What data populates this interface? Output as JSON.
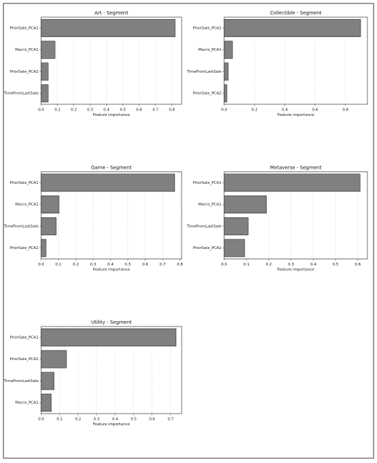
{
  "chart_data": [
    {
      "type": "barh",
      "title": "Art - Segment",
      "categories": [
        "PriorSale_PCA1",
        "Macro_PCA1",
        "PriorSale_PCA2",
        "TimeFromLastSale"
      ],
      "values": [
        0.82,
        0.085,
        0.043,
        0.043
      ],
      "color": "#808080",
      "xlabel": "Feature importance",
      "xlim": [
        0,
        0.86
      ],
      "xticks": [
        {
          "value": 0,
          "label": "0.0"
        },
        0.1,
        0.2,
        0.3,
        0.4,
        0.5,
        0.6,
        0.7,
        0.8
      ],
      "grid": true
    },
    {
      "type": "barh",
      "title": "Collectible - Segment",
      "categories": [
        "PriorSale_PCA1",
        "Macro_PCA1",
        "TimeFromLastSale",
        "PriorSale_PCA2"
      ],
      "values": [
        0.9,
        0.055,
        0.027,
        0.018
      ],
      "color": "#808080",
      "xlabel": "Feature importance",
      "xlim": [
        0,
        0.945
      ],
      "xticks": [
        {
          "value": 0,
          "label": "0.0"
        },
        0.2,
        0.4,
        0.6,
        0.8
      ],
      "grid": true
    },
    {
      "type": "barh",
      "title": "Game - Segment",
      "categories": [
        "PriorSale_PCA1",
        "Macro_PCA1",
        "TimeFromLastSale",
        "PriorSale_PCA2"
      ],
      "values": [
        0.77,
        0.103,
        0.087,
        0.028
      ],
      "color": "#808080",
      "xlabel": "Feature importance",
      "xlim": [
        0,
        0.81
      ],
      "xticks": [
        {
          "value": 0,
          "label": "0.0"
        },
        0.1,
        0.2,
        0.3,
        0.4,
        0.5,
        0.6,
        0.7,
        0.8
      ],
      "grid": true
    },
    {
      "type": "barh",
      "title": "Metaverse - Segment",
      "categories": [
        "PriorSale_PCA1",
        "Macro_PCA1",
        "TimeFromLastSale",
        "PriorSale_PCA2"
      ],
      "values": [
        0.61,
        0.19,
        0.108,
        0.092
      ],
      "color": "#808080",
      "xlabel": "Feature importance",
      "xlim": [
        0,
        0.643
      ],
      "xticks": [
        {
          "value": 0,
          "label": "0.0"
        },
        0.1,
        0.2,
        0.3,
        0.4,
        0.5,
        0.6
      ],
      "grid": true
    },
    {
      "type": "barh",
      "title": "Utility - Segment",
      "categories": [
        "PriorSale_PCA1",
        "PriorSale_PCA2",
        "TimeFromLastSale",
        "Macro_PCA1"
      ],
      "values": [
        0.73,
        0.137,
        0.07,
        0.055
      ],
      "color": "#808080",
      "xlabel": "Feature importance",
      "xlim": [
        0,
        0.76
      ],
      "xticks": [
        {
          "value": 0,
          "label": "0.0"
        },
        0.1,
        0.2,
        0.3,
        0.4,
        0.5,
        0.6,
        0.7
      ],
      "grid": true
    }
  ]
}
